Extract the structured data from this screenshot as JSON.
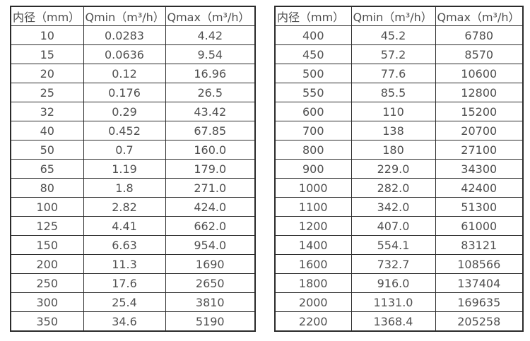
{
  "page": {
    "background_color": "#ffffff",
    "border_color": "#2b2b2b",
    "text_color": "#4f4f4f"
  },
  "tables": [
    {
      "name": "flow-table-small-diameters",
      "headers": [
        "内径（mm）",
        "Qmin（m³/h）",
        "Qmax（m³/h）"
      ],
      "rows": [
        [
          "10",
          "0.0283",
          "4.42"
        ],
        [
          "15",
          "0.0636",
          "9.54"
        ],
        [
          "20",
          "0.12",
          "16.96"
        ],
        [
          "25",
          "0.176",
          "26.5"
        ],
        [
          "32",
          "0.29",
          "43.42"
        ],
        [
          "40",
          "0.452",
          "67.85"
        ],
        [
          "50",
          "0.7",
          "160.0"
        ],
        [
          "65",
          "1.19",
          "179.0"
        ],
        [
          "80",
          "1.8",
          "271.0"
        ],
        [
          "100",
          "2.82",
          "424.0"
        ],
        [
          "125",
          "4.41",
          "662.0"
        ],
        [
          "150",
          "6.63",
          "954.0"
        ],
        [
          "200",
          "11.3",
          "1690"
        ],
        [
          "250",
          "17.6",
          "2650"
        ],
        [
          "300",
          "25.4",
          "3810"
        ],
        [
          "350",
          "34.6",
          "5190"
        ]
      ]
    },
    {
      "name": "flow-table-large-diameters",
      "headers": [
        "内径（mm）",
        "Qmin（m³/h）",
        "Qmax（m³/h）"
      ],
      "rows": [
        [
          "400",
          "45.2",
          "6780"
        ],
        [
          "450",
          "57.2",
          "8570"
        ],
        [
          "500",
          "77.6",
          "10600"
        ],
        [
          "550",
          "85.5",
          "12800"
        ],
        [
          "600",
          "110",
          "15200"
        ],
        [
          "700",
          "138",
          "20700"
        ],
        [
          "800",
          "180",
          "27100"
        ],
        [
          "900",
          "229.0",
          "34300"
        ],
        [
          "1000",
          "282.0",
          "42400"
        ],
        [
          "1100",
          "342.0",
          "51300"
        ],
        [
          "1200",
          "407.0",
          "61000"
        ],
        [
          "1400",
          "554.1",
          "83121"
        ],
        [
          "1600",
          "732.7",
          "108566"
        ],
        [
          "1800",
          "916.0",
          "137404"
        ],
        [
          "2000",
          "1131.0",
          "169635"
        ],
        [
          "2200",
          "1368.4",
          "205258"
        ]
      ]
    }
  ]
}
